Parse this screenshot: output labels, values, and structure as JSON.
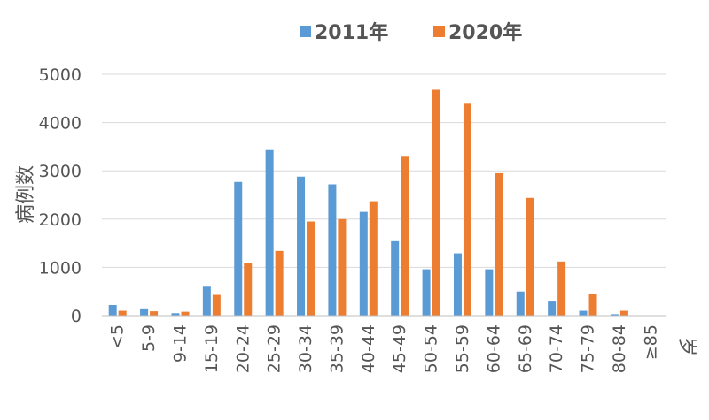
{
  "chart_data": {
    "type": "bar",
    "title": "",
    "ylabel": "病例数",
    "xlabel": "岁",
    "ylim": [
      0,
      5000
    ],
    "yticks": [
      0,
      1000,
      2000,
      3000,
      4000,
      5000
    ],
    "categories": [
      "<5",
      "5-9",
      "9-14",
      "15-19",
      "20-24",
      "25-29",
      "30-34",
      "35-39",
      "40-44",
      "45-49",
      "50-54",
      "55-59",
      "60-64",
      "65-69",
      "70-74",
      "75-79",
      "80-84",
      "≥85"
    ],
    "series": [
      {
        "name": "2011年",
        "color": "#5b9bd5",
        "values": [
          220,
          150,
          50,
          600,
          2770,
          3430,
          2880,
          2720,
          2150,
          1560,
          960,
          1290,
          960,
          500,
          310,
          100,
          30,
          5
        ]
      },
      {
        "name": "2020年",
        "color": "#ed7d31",
        "values": [
          100,
          90,
          80,
          430,
          1090,
          1340,
          1950,
          2000,
          2370,
          3310,
          4680,
          4390,
          2950,
          2440,
          1120,
          450,
          100,
          5
        ]
      }
    ],
    "grid": true,
    "legend_position": "top"
  }
}
